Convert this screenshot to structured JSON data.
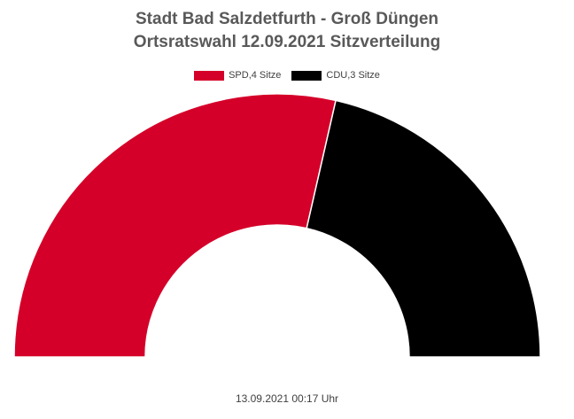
{
  "chart_data": {
    "type": "pie",
    "subtype": "half-donut",
    "title_line_1": "Stadt Bad Salzdetfurth - Groß Düngen",
    "title_line_2": "Ortsratswahl 12.09.2021 Sitzverteilung",
    "legend_position": "top",
    "series": [
      {
        "name": "SPD,4 Sitze",
        "party": "SPD",
        "value": 4,
        "color": "#d50029"
      },
      {
        "name": "CDU,3 Sitze",
        "party": "CDU",
        "value": 3,
        "color": "#000000"
      }
    ]
  },
  "footer": {
    "timestamp": "13.09.2021 00:17 Uhr"
  }
}
